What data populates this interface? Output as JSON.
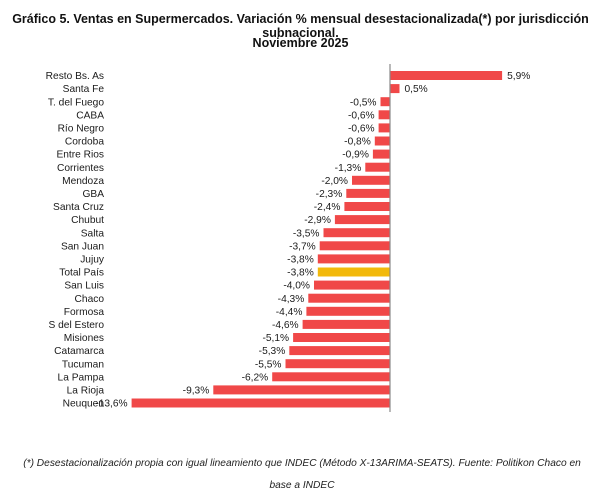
{
  "chart_data": {
    "type": "bar",
    "orientation": "horizontal",
    "title": "Gráfico 5. Ventas en Supermercados. Variación % mensual desestacionalizada(*) por jurisdicción subnacional.",
    "subtitle": "Noviembre 2025",
    "categories": [
      "Resto Bs. As",
      "Santa Fe",
      "T. del Fuego",
      "CABA",
      "Río Negro",
      "Cordoba",
      "Entre Rios",
      "Corrientes",
      "Mendoza",
      "GBA",
      "Santa Cruz",
      "Chubut",
      "Salta",
      "San Juan",
      "Jujuy",
      "Total País",
      "San Luis",
      "Chaco",
      "Formosa",
      "S del Estero",
      "Misiones",
      "Catamarca",
      "Tucuman",
      "La Pampa",
      "La Rioja",
      "Neuquen"
    ],
    "values": [
      5.9,
      0.5,
      -0.5,
      -0.6,
      -0.6,
      -0.8,
      -0.9,
      -1.3,
      -2.0,
      -2.3,
      -2.4,
      -2.9,
      -3.5,
      -3.7,
      -3.8,
      -3.8,
      -4.0,
      -4.3,
      -4.4,
      -4.6,
      -5.1,
      -5.3,
      -5.5,
      -6.2,
      -9.3,
      -13.6
    ],
    "labels": [
      "5,9%",
      "0,5%",
      "-0,5%",
      "-0,6%",
      "-0,6%",
      "-0,8%",
      "-0,9%",
      "-1,3%",
      "-2,0%",
      "-2,3%",
      "-2,4%",
      "-2,9%",
      "-3,5%",
      "-3,7%",
      "-3,8%",
      "-3,8%",
      "-4,0%",
      "-4,3%",
      "-4,4%",
      "-4,6%",
      "-5,1%",
      "-5,3%",
      "-5,5%",
      "-6,2%",
      "-9,3%",
      "-13,6%"
    ],
    "highlight": "Total País",
    "xlim": [
      -14,
      6.5
    ],
    "grid": false,
    "legend": "none",
    "colors": {
      "bar": "#f04848",
      "highlight": "#f2b90b",
      "axis": "#8a8a8a"
    }
  },
  "footnote": {
    "line1": "(*) Desestacionalización propia con igual lineamiento que INDEC (Método X-13ARIMA-SEATS). Fuente: Politikon Chaco en",
    "line2": "base a INDEC"
  }
}
